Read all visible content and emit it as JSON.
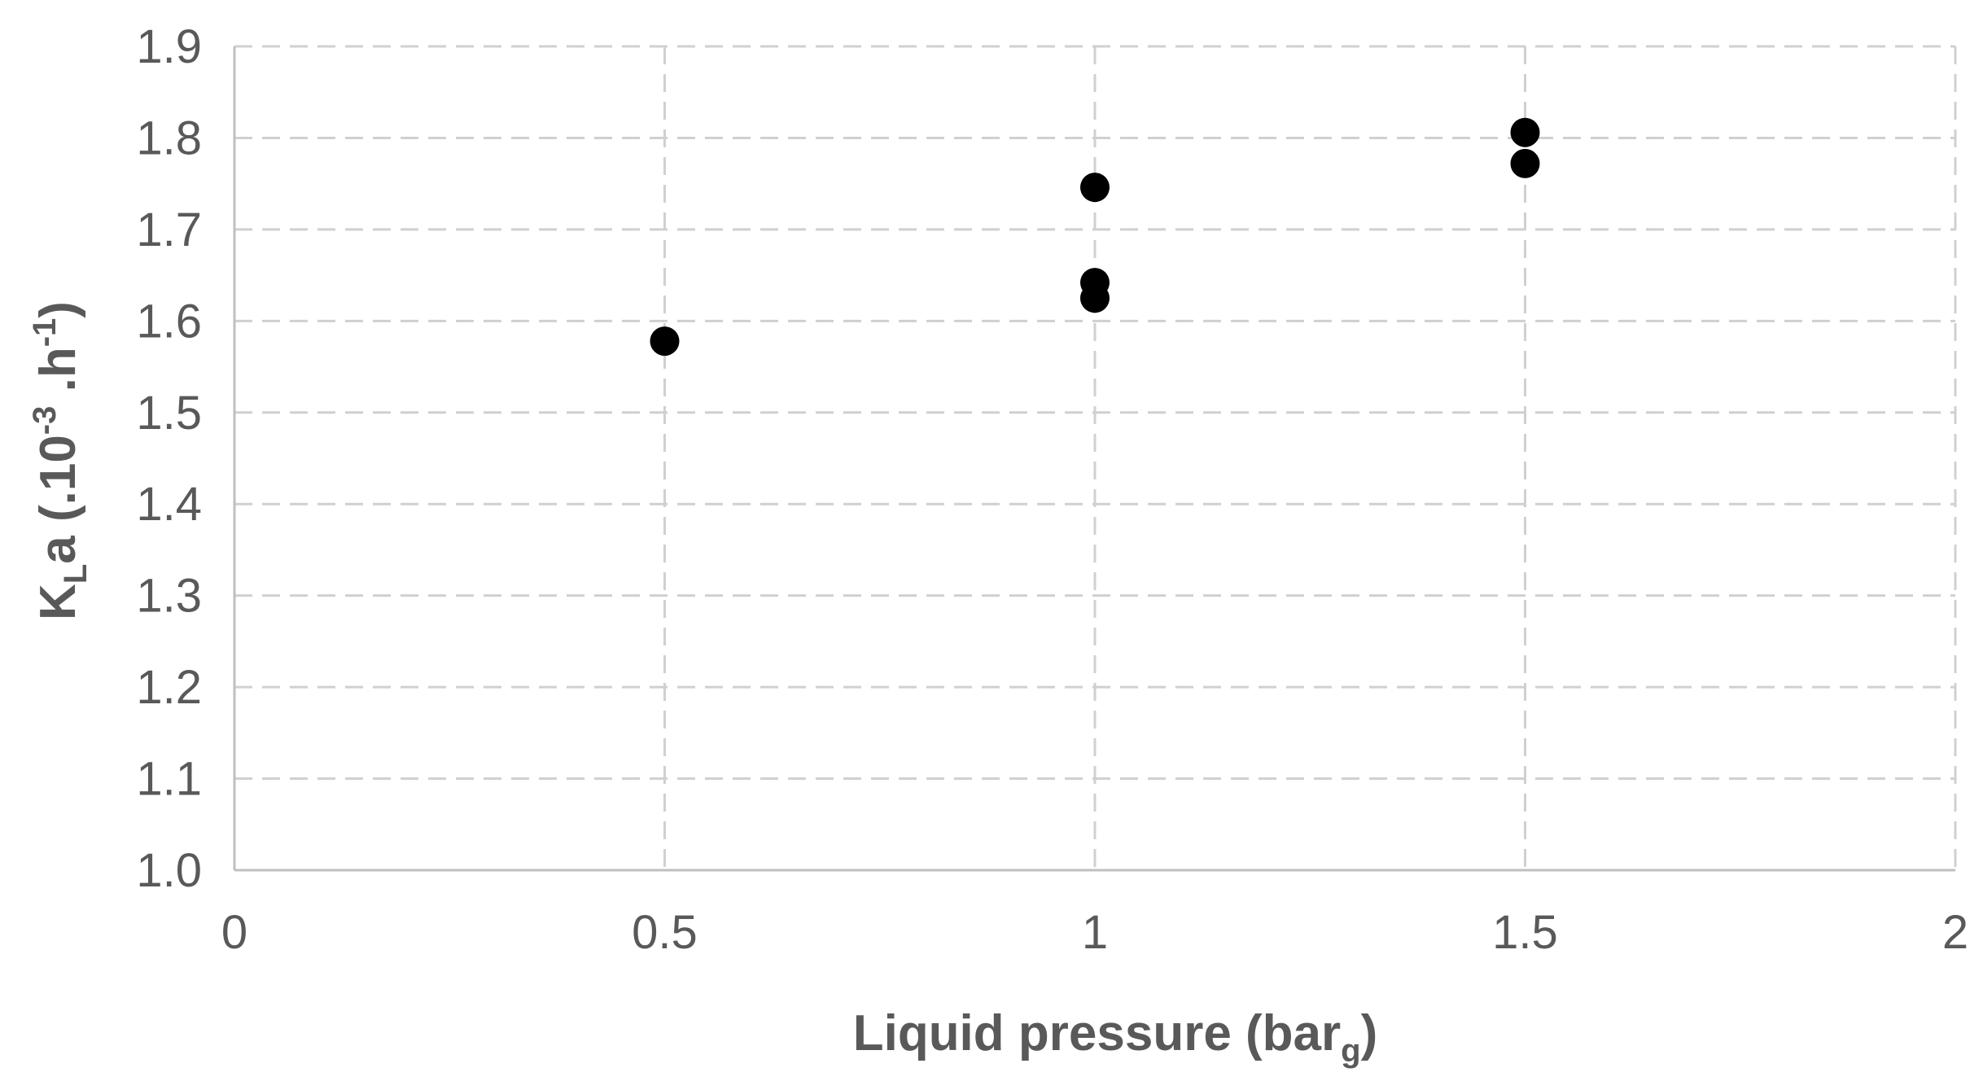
{
  "chart_data": {
    "type": "scatter",
    "title": "",
    "xlabel": {
      "main": "Liquid pressure (bar",
      "sub": "g",
      "end": ")"
    },
    "ylabel": {
      "p1": "K",
      "sub1": "L",
      "p2": "a (.10",
      "sup1": "-3",
      "p3": " .h",
      "sup2": "-1",
      "p4": ")"
    },
    "xlim": [
      0,
      2
    ],
    "ylim": [
      1.0,
      1.9
    ],
    "x_ticks": [
      {
        "value": 0,
        "label": "0"
      },
      {
        "value": 0.5,
        "label": "0.5"
      },
      {
        "value": 1,
        "label": "1"
      },
      {
        "value": 1.5,
        "label": "1.5"
      },
      {
        "value": 2,
        "label": "2"
      }
    ],
    "y_ticks": [
      {
        "value": 1.0,
        "label": "1.0"
      },
      {
        "value": 1.1,
        "label": "1.1"
      },
      {
        "value": 1.2,
        "label": "1.2"
      },
      {
        "value": 1.3,
        "label": "1.3"
      },
      {
        "value": 1.4,
        "label": "1.4"
      },
      {
        "value": 1.5,
        "label": "1.5"
      },
      {
        "value": 1.6,
        "label": "1.6"
      },
      {
        "value": 1.7,
        "label": "1.7"
      },
      {
        "value": 1.8,
        "label": "1.8"
      },
      {
        "value": 1.9,
        "label": "1.9"
      }
    ],
    "grid": true,
    "grid_style": "dashed",
    "marker_color": "#000000",
    "series": [
      {
        "points": [
          {
            "x": 0.5,
            "y": 1.578
          },
          {
            "x": 1.0,
            "y": 1.746
          },
          {
            "x": 1.0,
            "y": 1.642
          },
          {
            "x": 1.0,
            "y": 1.625
          },
          {
            "x": 1.5,
            "y": 1.806
          },
          {
            "x": 1.5,
            "y": 1.772
          }
        ]
      }
    ]
  }
}
